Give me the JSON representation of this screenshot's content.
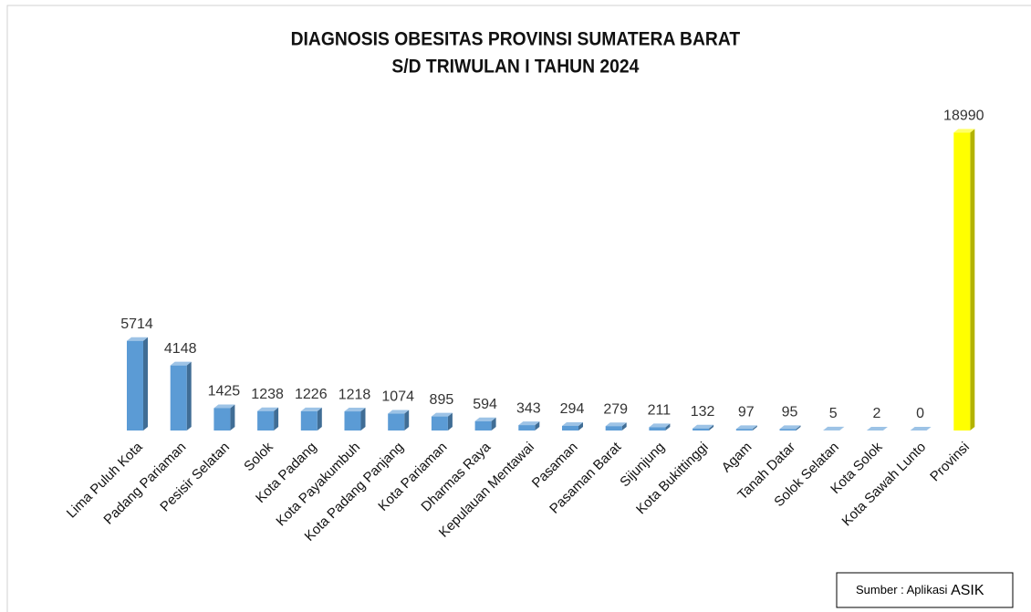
{
  "chart_data": {
    "type": "bar3d",
    "title": "DIAGNOSIS OBESITAS PROVINSI SUMATERA BARAT",
    "subtitle": "S/D TRIWULAN I TAHUN 2024",
    "categories": [
      "Lima Puluh Kota",
      "Padang Pariaman",
      "Pesisir Selatan",
      "Solok",
      "Kota Padang",
      "Kota Payakumbuh",
      "Kota Padang Panjang",
      "Kota Pariaman",
      "Dharmas Raya",
      "Kepulauan Mentawai",
      "Pasaman",
      "Pasaman Barat",
      "Sijunjung",
      "Kota Bukittinggi",
      "Agam",
      "Tanah Datar",
      "Solok Selatan",
      "Kota Solok",
      "Kota Sawah Lunto",
      "Provinsi"
    ],
    "values": [
      5714,
      4148,
      1425,
      1238,
      1226,
      1218,
      1074,
      895,
      594,
      343,
      294,
      279,
      211,
      132,
      97,
      95,
      5,
      2,
      0,
      18990
    ],
    "colors": [
      "#5b9bd5",
      "#5b9bd5",
      "#5b9bd5",
      "#5b9bd5",
      "#5b9bd5",
      "#5b9bd5",
      "#5b9bd5",
      "#5b9bd5",
      "#5b9bd5",
      "#5b9bd5",
      "#5b9bd5",
      "#5b9bd5",
      "#5b9bd5",
      "#5b9bd5",
      "#5b9bd5",
      "#5b9bd5",
      "#5b9bd5",
      "#5b9bd5",
      "#5b9bd5",
      "#ffff00"
    ],
    "ylim": [
      0,
      20000
    ],
    "grid": false,
    "source": [
      "Sumber : Aplikasi",
      "ASIK"
    ]
  }
}
